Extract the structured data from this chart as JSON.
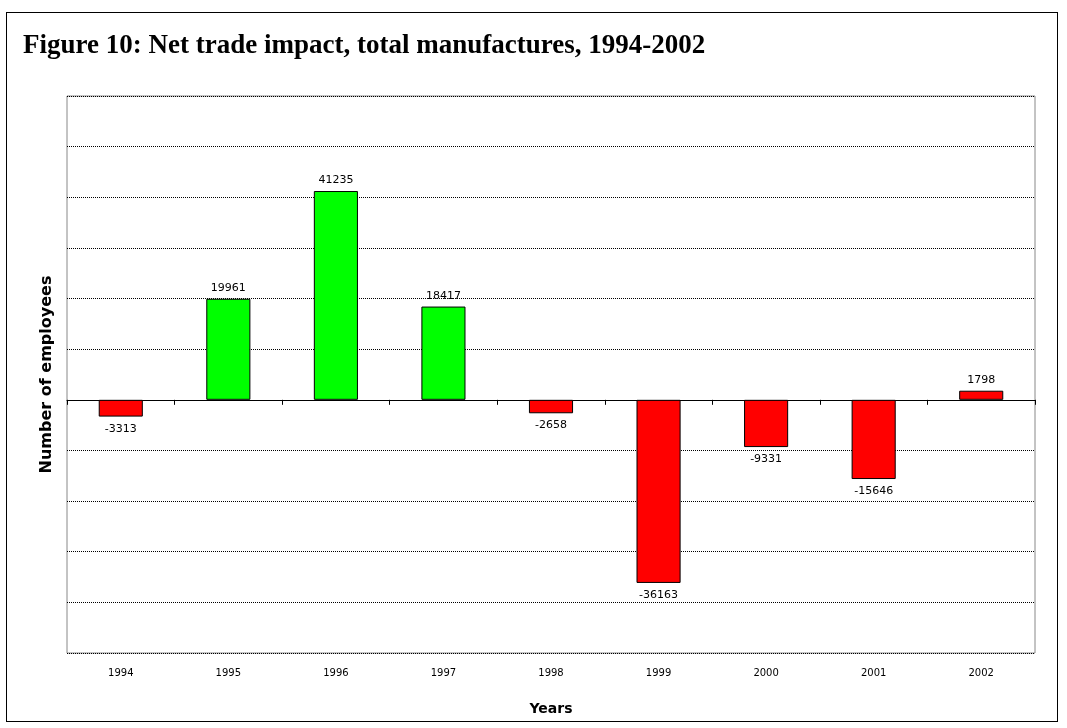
{
  "chart_data": {
    "type": "bar",
    "title": "Figure 10:  Net trade impact, total manufactures, 1994-2002",
    "xlabel": "Years",
    "ylabel": "Number of employees",
    "categories": [
      "1994",
      "1995",
      "1996",
      "1997",
      "1998",
      "1999",
      "2000",
      "2001",
      "2002"
    ],
    "values": [
      -3313,
      19961,
      41235,
      18417,
      -2658,
      -36163,
      -9331,
      -15646,
      1798
    ],
    "colors": [
      "#ff0000",
      "#00ff00",
      "#00ff00",
      "#00ff00",
      "#ff0000",
      "#ff0000",
      "#ff0000",
      "#ff0000",
      "#ff0000"
    ],
    "ylim": [
      -50000,
      60000
    ],
    "tick_labels": "x",
    "grid": "y",
    "data_labels": true
  }
}
